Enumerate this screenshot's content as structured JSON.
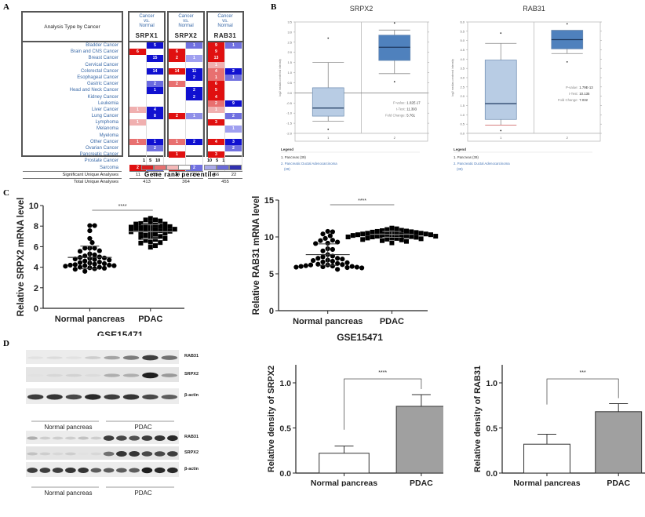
{
  "panels": {
    "A": "A",
    "B": "B",
    "C": "C",
    "D": "D"
  },
  "panelA": {
    "header_label": "Analysis Type by Cancer",
    "comparison_label": [
      "Cancer",
      "vs.",
      "Normal"
    ],
    "genes": [
      "SRPX1",
      "SRPX2",
      "RAB31"
    ],
    "cancers": [
      "Bladder Cancer",
      "Brain and CNS Cancer",
      "Breast Cancer",
      "Cervical Cancer",
      "Colorectal Cancer",
      "Esophageal Cancer",
      "Gastric Cancer",
      "Head and Neck Cancer",
      "Kidney Cancer",
      "Leukemia",
      "Liver Cancer",
      "Lung Cancer",
      "Lymphoma",
      "Melanoma",
      "Myeloma",
      "Other Cancer",
      "Ovarian Cancer",
      "Pancreatic Cancer",
      "Prostate Cancer",
      "Sarcoma"
    ],
    "cells": {
      "SRPX1": [
        [
          null,
          {
            "v": "5",
            "c": "#1010d0"
          }
        ],
        [
          {
            "v": "6",
            "c": "#e01010"
          },
          null
        ],
        [
          null,
          {
            "v": "15",
            "c": "#1010d0"
          }
        ],
        [
          null,
          null
        ],
        [
          null,
          {
            "v": "14",
            "c": "#1010d0"
          }
        ],
        [
          null,
          null
        ],
        [
          null,
          {
            "v": "2",
            "c": "#6a6ae0"
          }
        ],
        [
          null,
          {
            "v": "1",
            "c": "#1010d0"
          }
        ],
        [
          null,
          null
        ],
        [
          null,
          null
        ],
        [
          {
            "v": "1",
            "c": "#f0b0b0"
          },
          {
            "v": "4",
            "c": "#1010d0"
          }
        ],
        [
          null,
          {
            "v": "8",
            "c": "#1010d0"
          }
        ],
        [
          {
            "v": "1",
            "c": "#f0b0b0"
          },
          null
        ],
        [
          null,
          null
        ],
        [
          null,
          null
        ],
        [
          {
            "v": "1",
            "c": "#e87070"
          },
          {
            "v": "1",
            "c": "#1010d0"
          }
        ],
        [
          null,
          {
            "v": "2",
            "c": "#7070e0"
          }
        ],
        [
          null,
          null
        ],
        [
          null,
          null
        ],
        [
          {
            "v": "2",
            "c": "#e01010"
          },
          {
            "v": "1",
            "c": "#7070e0"
          }
        ]
      ],
      "SRPX2": [
        [
          null,
          {
            "v": "1",
            "c": "#7070e0"
          }
        ],
        [
          {
            "v": "6",
            "c": "#e01010"
          },
          null
        ],
        [
          {
            "v": "2",
            "c": "#e01010"
          },
          {
            "v": "1",
            "c": "#a0a0f0"
          }
        ],
        [
          null,
          null
        ],
        [
          {
            "v": "14",
            "c": "#e01010"
          },
          {
            "v": "11",
            "c": "#1010d0"
          }
        ],
        [
          null,
          {
            "v": "2",
            "c": "#1010d0"
          }
        ],
        [
          {
            "v": "2",
            "c": "#e87070"
          },
          null
        ],
        [
          null,
          {
            "v": "2",
            "c": "#1010d0"
          }
        ],
        [
          null,
          {
            "v": "2",
            "c": "#1010d0"
          }
        ],
        [
          null,
          null
        ],
        [
          null,
          null
        ],
        [
          {
            "v": "2",
            "c": "#e01010"
          },
          {
            "v": "1",
            "c": "#9090e8"
          }
        ],
        [
          null,
          null
        ],
        [
          null,
          null
        ],
        [
          null,
          null
        ],
        [
          {
            "v": "1",
            "c": "#e87070"
          },
          {
            "v": "2",
            "c": "#1010d0"
          }
        ],
        [
          null,
          null
        ],
        [
          {
            "v": "1",
            "c": "#e01010"
          },
          null
        ],
        [
          null,
          null
        ],
        [
          {
            "v": "2",
            "c": "#e01010"
          },
          {
            "v": "2",
            "c": "#7070e0"
          }
        ]
      ],
      "RAB31": [
        [
          {
            "v": "9",
            "c": "#e01010"
          },
          {
            "v": "1",
            "c": "#7070e0"
          }
        ],
        [
          {
            "v": "9",
            "c": "#e01010"
          },
          null
        ],
        [
          {
            "v": "13",
            "c": "#e01010"
          },
          null
        ],
        [
          {
            "v": "1",
            "c": "#f0b0b0"
          },
          null
        ],
        [
          {
            "v": "4",
            "c": "#e87070"
          },
          {
            "v": "2",
            "c": "#1010d0"
          }
        ],
        [
          {
            "v": "1",
            "c": "#e87070"
          },
          {
            "v": "1",
            "c": "#7070e0"
          }
        ],
        [
          {
            "v": "6",
            "c": "#e01010"
          },
          null
        ],
        [
          {
            "v": "5",
            "c": "#e01010"
          },
          null
        ],
        [
          {
            "v": "4",
            "c": "#e01010"
          },
          null
        ],
        [
          {
            "v": "2",
            "c": "#e87070"
          },
          {
            "v": "9",
            "c": "#1010d0"
          }
        ],
        [
          {
            "v": "1",
            "c": "#f0b0b0"
          },
          null
        ],
        [
          null,
          {
            "v": "2",
            "c": "#7070e0"
          }
        ],
        [
          {
            "v": "3",
            "c": "#e01010"
          },
          null
        ],
        [
          null,
          {
            "v": "1",
            "c": "#a0a0f0"
          }
        ],
        [
          null,
          null
        ],
        [
          {
            "v": "4",
            "c": "#e01010"
          },
          {
            "v": "3",
            "c": "#1010d0"
          }
        ],
        [
          null,
          {
            "v": "2",
            "c": "#7070e0"
          }
        ],
        [
          {
            "v": "3",
            "c": "#e01010"
          },
          null
        ],
        [
          null,
          null
        ],
        [
          null,
          null
        ]
      ]
    },
    "footer_label_1": "Significant Unique Analyses",
    "footer_label_2": "Total Unique Analyses",
    "significant": {
      "SRPX1": [
        "11",
        "53"
      ],
      "SRPX2": [
        "34",
        "24"
      ],
      "RAB31": [
        "56",
        "22"
      ]
    },
    "total": {
      "SRPX1": "413",
      "SRPX2": "364",
      "RAB31": "455"
    },
    "legend": {
      "left_nums": [
        "1",
        "5",
        "10"
      ],
      "right_nums": [
        "10",
        "5",
        "1"
      ],
      "mid": "%",
      "red_colors": [
        "#d92020",
        "#e87070",
        "#f4b8b8"
      ],
      "blue_colors": [
        "#a8a8e8",
        "#6a6ad8",
        "#3030b0"
      ],
      "title": "Gene rank percentile"
    }
  },
  "chart_data": [
    {
      "id": "B-SRPX2",
      "type": "box",
      "title": "SRPX2",
      "ylabel": "log2 median-centered intensity",
      "ylim": [
        -2.0,
        3.5
      ],
      "yticks": [
        "3.5",
        "3.0",
        "2.5",
        "2.0",
        "1.5",
        "1.0",
        "0.5",
        "0.0",
        "-0.5",
        "-1.0",
        "-1.5",
        "-2.0"
      ],
      "categories": [
        "1",
        "2"
      ],
      "boxes": [
        {
          "name": "Pancreas",
          "min": -1.4,
          "q1": -1.15,
          "median": -0.75,
          "q3": 0.25,
          "max": 1.5,
          "outliers": [
            2.7,
            -1.8
          ],
          "color": "#b8cce4"
        },
        {
          "name": "Pancreatic Ductal Adenocarcinoma",
          "min": 0.95,
          "q1": 1.6,
          "median": 2.25,
          "q3": 2.85,
          "max": 3.1,
          "outliers": [
            3.45,
            0.55
          ],
          "color": "#4f81bd"
        }
      ],
      "stats": {
        "p_label": "P-value:",
        "p": "1.02E-17",
        "t_label": "t-Test:",
        "t": "11.393",
        "fc_label": "Fold Change:",
        "fc": "5.761"
      },
      "legend_title": "Legend",
      "legend": [
        "1. Pancreas (39)",
        "2. Pancreatic Ductal Adenocarcinoma",
        "(39)"
      ]
    },
    {
      "id": "B-RAB31",
      "type": "box",
      "title": "RAB31",
      "ylabel": "log2 median-centered intensity",
      "ylim": [
        0.0,
        6.0
      ],
      "yticks": [
        "6.0",
        "5.5",
        "5.0",
        "4.5",
        "4.0",
        "3.5",
        "3.0",
        "2.5",
        "2.0",
        "1.5",
        "1.0",
        "0.5",
        "0.0"
      ],
      "categories": [
        "1",
        "2"
      ],
      "boxes": [
        {
          "name": "Pancreas",
          "min": 0.45,
          "q1": 0.75,
          "median": 1.6,
          "q3": 3.95,
          "max": 4.85,
          "outliers": [
            5.4,
            0.15
          ],
          "color": "#b8cce4"
        },
        {
          "name": "Pancreatic Ductal Adenocarcinoma",
          "min": 4.3,
          "q1": 4.55,
          "median": 5.05,
          "q3": 5.55,
          "max": 5.55,
          "outliers": [
            5.9,
            3.85
          ],
          "color": "#4f81bd"
        }
      ],
      "stats": {
        "p_label": "P-value:",
        "p": "1.79E-13",
        "t_label": "t-Test:",
        "t": "10.135",
        "fc_label": "Fold Change:",
        "fc": "7.032"
      },
      "legend_title": "Legend",
      "legend": [
        "1. Pancreas (39)",
        "2. Pancreatic Ductal Adenocarcinoma",
        "(39)"
      ]
    },
    {
      "id": "C-SRPX2",
      "type": "scatter",
      "ylabel": "Relative SRPX2 mRNA level",
      "xlabel": "GSE15471",
      "categories": [
        "Normal pancreas",
        "PDAC"
      ],
      "ylim": [
        0,
        10
      ],
      "yticks": [
        "0",
        "2",
        "4",
        "6",
        "8",
        "10"
      ],
      "significance": "****",
      "series": [
        {
          "name": "Normal pancreas",
          "marker": "circle",
          "mean": 4.95,
          "sd": 1.1,
          "values": [
            8.05,
            8.05,
            7.55,
            6.8,
            6.4,
            5.85,
            5.85,
            5.85,
            5.6,
            5.55,
            5.3,
            5.2,
            5.1,
            5.0,
            4.95,
            4.9,
            4.85,
            4.8,
            4.75,
            4.7,
            4.6,
            4.5,
            4.45,
            4.4,
            4.35,
            4.3,
            4.25,
            4.2,
            4.2,
            4.15,
            4.15,
            4.1,
            4.0,
            4.0,
            3.95,
            3.9,
            3.85,
            3.8,
            3.6
          ]
        },
        {
          "name": "PDAC",
          "marker": "square",
          "mean": 7.45,
          "sd": 0.7,
          "values": [
            8.75,
            8.6,
            8.6,
            8.5,
            8.3,
            8.25,
            8.2,
            8.2,
            8.1,
            8.05,
            8.0,
            7.95,
            7.9,
            7.85,
            7.8,
            7.75,
            7.75,
            7.7,
            7.65,
            7.6,
            7.55,
            7.5,
            7.45,
            7.4,
            7.35,
            7.3,
            7.2,
            7.1,
            7.0,
            6.95,
            6.9,
            6.8,
            6.7,
            6.6,
            6.45,
            6.4,
            6.35,
            6.1,
            5.95
          ]
        }
      ]
    },
    {
      "id": "C-RAB31",
      "type": "scatter",
      "ylabel": "Relative RAB31 mRNA level",
      "xlabel": "GSE15471",
      "categories": [
        "Normal pancreas",
        "PDAC"
      ],
      "ylim": [
        0,
        15
      ],
      "yticks": [
        "0",
        "5",
        "10",
        "15"
      ],
      "significance": "****",
      "series": [
        {
          "name": "Normal pancreas",
          "marker": "circle",
          "mean": 7.6,
          "sd": 1.45,
          "values": [
            10.75,
            10.7,
            10.4,
            10.15,
            9.8,
            9.55,
            9.5,
            9.3,
            9.15,
            9.1,
            8.4,
            8.3,
            8.1,
            7.6,
            7.4,
            7.3,
            7.1,
            7.1,
            7.0,
            6.85,
            6.8,
            6.7,
            6.6,
            6.5,
            6.4,
            6.3,
            6.25,
            6.2,
            6.2,
            6.1,
            6.05,
            6.0,
            6.0,
            5.95,
            5.9,
            5.9,
            5.85,
            5.8,
            5.6
          ]
        },
        {
          "name": "PDAC",
          "marker": "square",
          "mean": 10.35,
          "sd": 0.4,
          "values": [
            11.2,
            11.1,
            11.0,
            10.9,
            10.85,
            10.8,
            10.75,
            10.7,
            10.65,
            10.6,
            10.55,
            10.5,
            10.5,
            10.45,
            10.4,
            10.4,
            10.35,
            10.3,
            10.3,
            10.25,
            10.2,
            10.2,
            10.15,
            10.1,
            10.1,
            10.05,
            10.0,
            10.0,
            9.95,
            9.9,
            9.85,
            9.8,
            9.75,
            9.7,
            9.65,
            9.6,
            9.5,
            9.4,
            9.2
          ]
        }
      ]
    },
    {
      "id": "D-SRPX2",
      "type": "bar",
      "ylabel": "Relative density of SRPX2",
      "categories": [
        "Normal pancreas",
        "PDAC"
      ],
      "values": [
        0.22,
        0.74
      ],
      "errors": [
        0.08,
        0.13
      ],
      "colors": [
        "#ffffff",
        "#a0a0a0"
      ],
      "ylim": [
        0,
        1.2
      ],
      "yticks": [
        "0.0",
        "0.5",
        "1.0"
      ],
      "significance": "****"
    },
    {
      "id": "D-RAB31",
      "type": "bar",
      "ylabel": "Relative density of RAB31",
      "categories": [
        "Normal pancreas",
        "PDAC"
      ],
      "values": [
        0.32,
        0.68
      ],
      "errors": [
        0.11,
        0.09
      ],
      "colors": [
        "#ffffff",
        "#a0a0a0"
      ],
      "ylim": [
        0,
        1.2
      ],
      "yticks": [
        "0.0",
        "0.5",
        "1.0"
      ],
      "significance": "***"
    }
  ],
  "blots": [
    {
      "labels": [
        "RAB31",
        "SRPX2",
        "β-actin"
      ],
      "groups": [
        "Normal pancreas",
        "PDAC"
      ],
      "lanes": 8,
      "intensity": {
        "RAB31": [
          0.05,
          0.08,
          0.05,
          0.15,
          0.35,
          0.55,
          0.85,
          0.6
        ],
        "SRPX2": [
          0.05,
          0.1,
          0.12,
          0.08,
          0.3,
          0.3,
          1.0,
          0.4
        ],
        "β-actin": [
          0.85,
          0.9,
          0.8,
          0.95,
          0.85,
          0.9,
          0.8,
          0.7
        ]
      }
    },
    {
      "labels": [
        "RAB31",
        "SRPX2",
        "β-actin"
      ],
      "groups": [
        "Normal pancreas",
        "PDAC"
      ],
      "lanes": 12,
      "intensity": {
        "RAB31": [
          0.3,
          0.15,
          0.15,
          0.15,
          0.2,
          0.15,
          0.85,
          0.8,
          0.75,
          0.85,
          0.9,
          0.95
        ],
        "SRPX2": [
          0.2,
          0.15,
          0.1,
          0.15,
          0.05,
          0.1,
          0.6,
          0.9,
          0.9,
          0.8,
          0.8,
          0.85
        ],
        "β-actin": [
          0.85,
          0.85,
          0.85,
          0.9,
          0.9,
          0.7,
          0.7,
          0.7,
          0.7,
          1.0,
          0.95,
          0.95
        ]
      }
    }
  ]
}
